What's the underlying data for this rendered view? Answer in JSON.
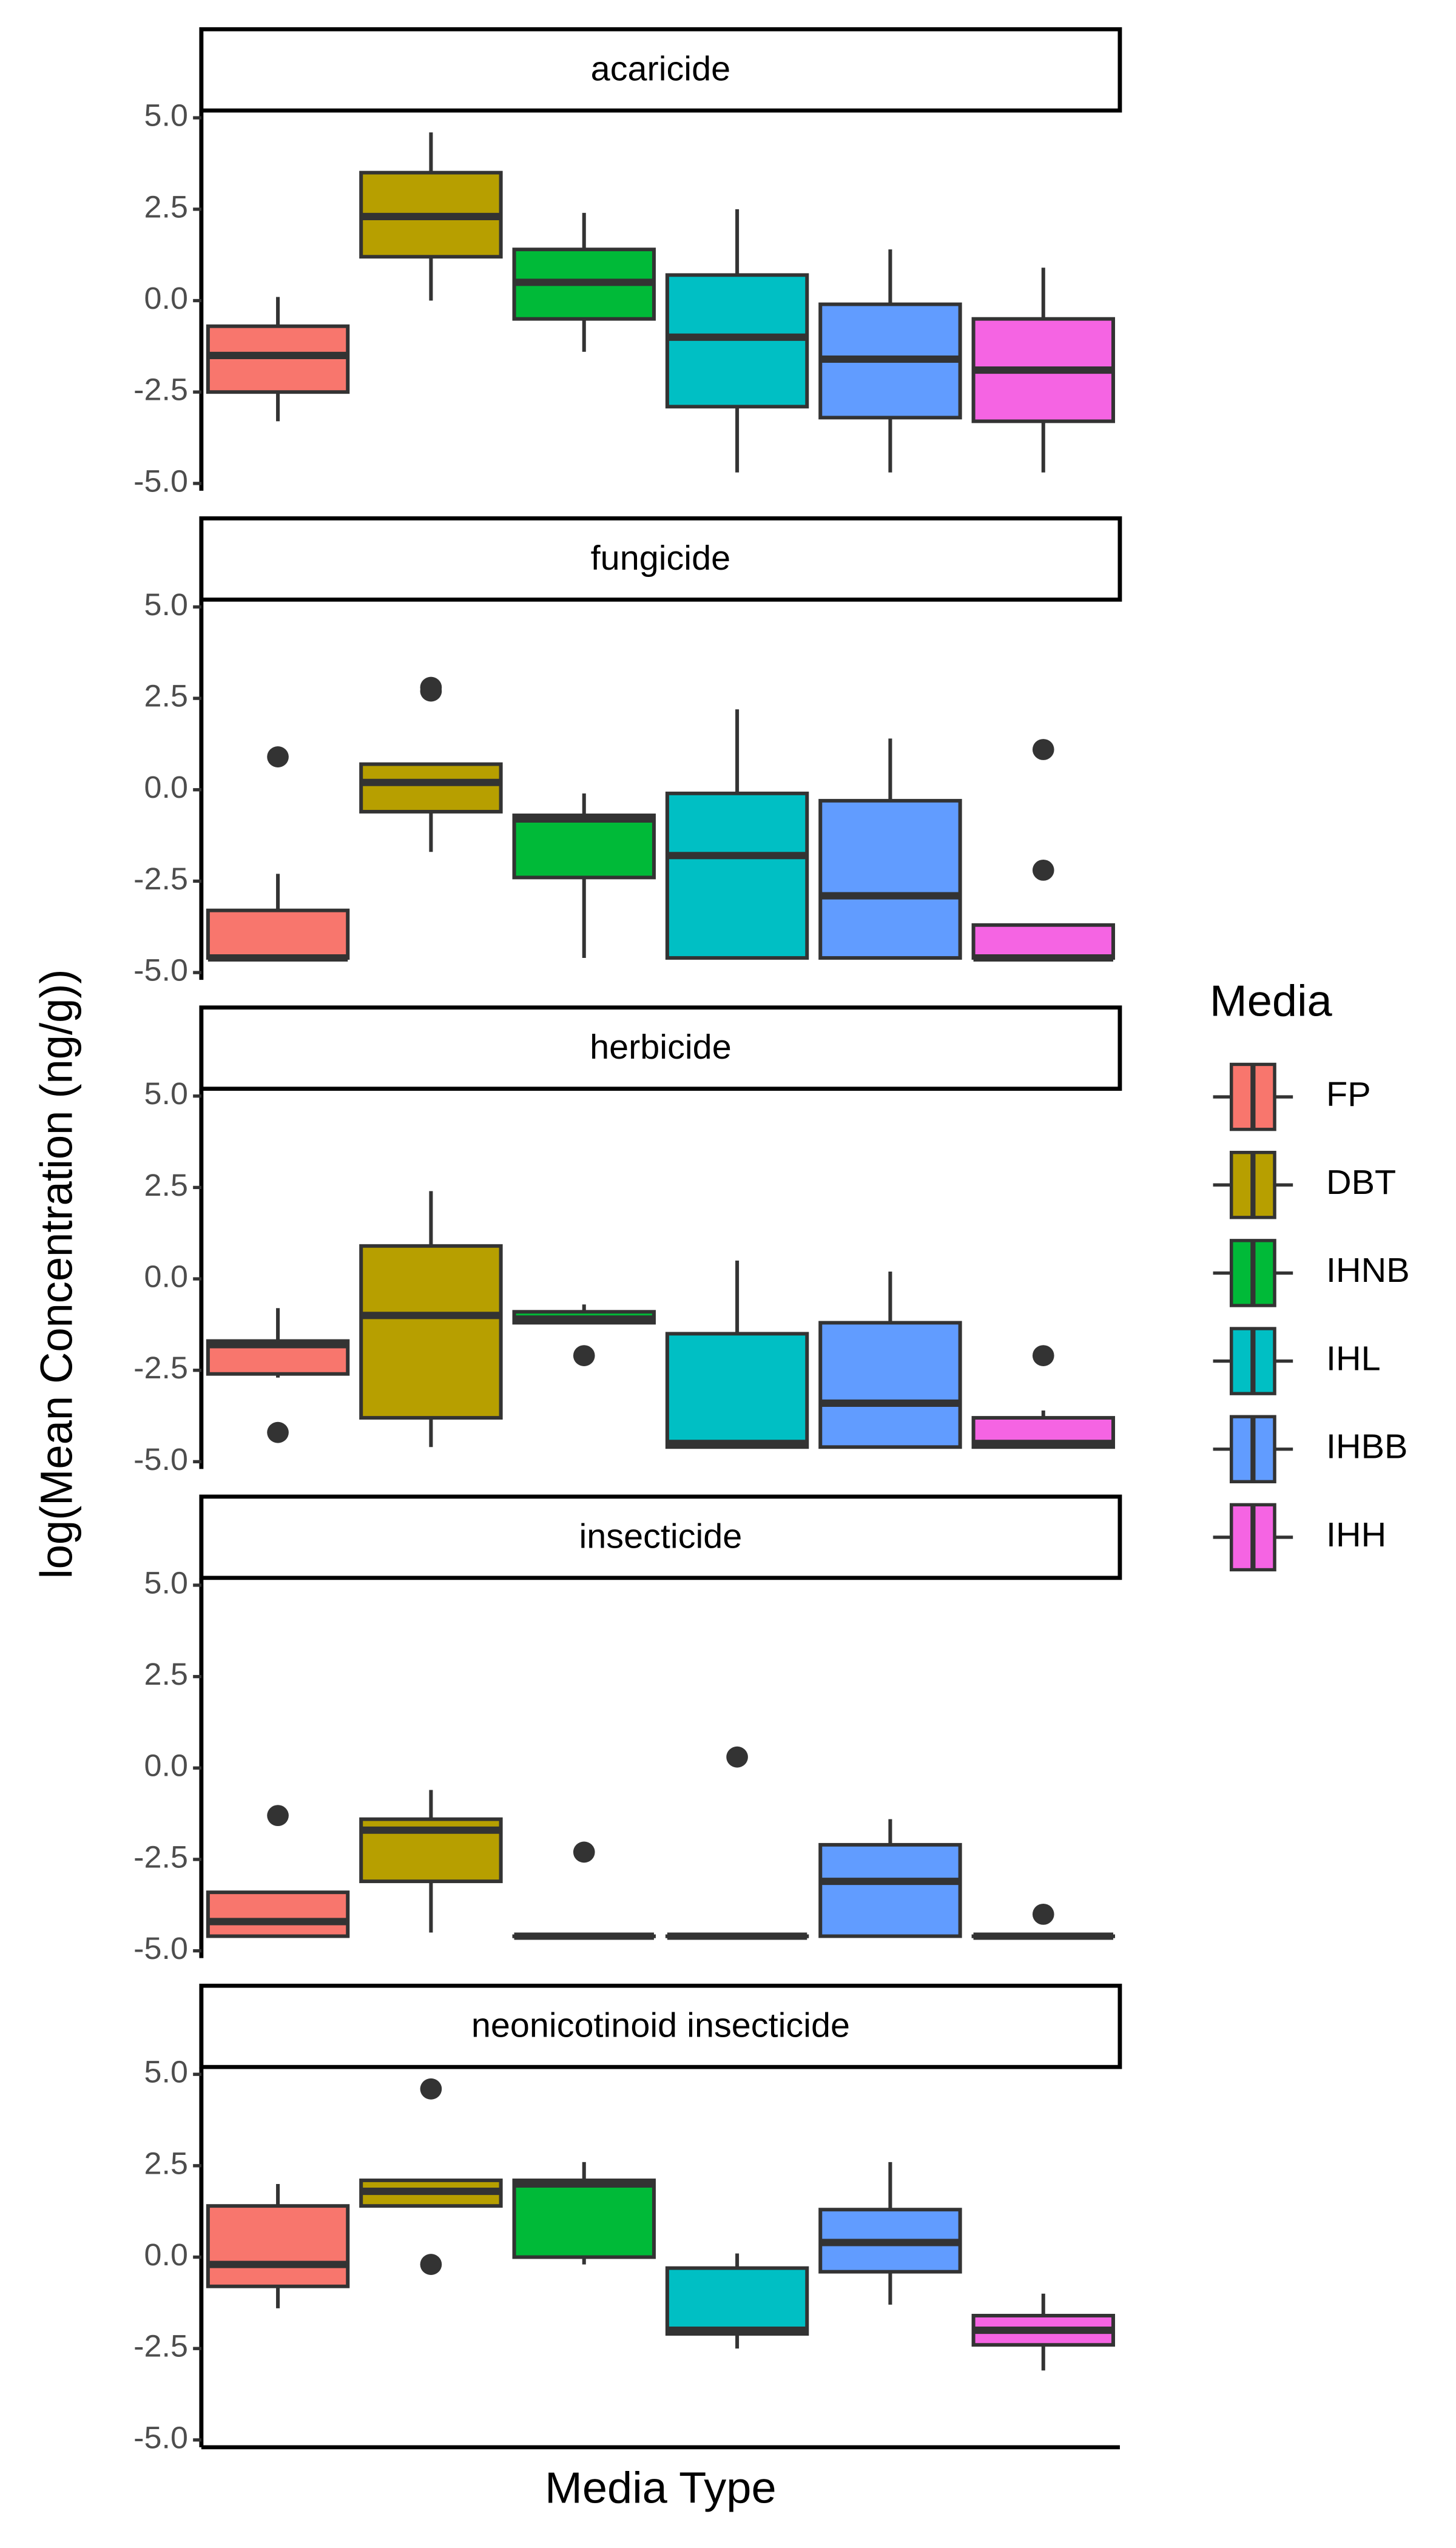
{
  "chart_data": {
    "type": "boxplot",
    "xlabel": "Media Type",
    "ylabel": "log(Mean Concentration (ng/g))",
    "legend_title": "Media",
    "legend_position": "right",
    "groups": [
      {
        "name": "FP",
        "color": "#F8766D"
      },
      {
        "name": "DBT",
        "color": "#B79F00"
      },
      {
        "name": "IHNB",
        "color": "#00BA38"
      },
      {
        "name": "IHL",
        "color": "#00BFC4"
      },
      {
        "name": "IHBB",
        "color": "#619CFF"
      },
      {
        "name": "IHH",
        "color": "#F564E3"
      }
    ],
    "ylim": [
      -5.2,
      5.2
    ],
    "yticks": [
      {
        "value": 5,
        "label": "5.0"
      },
      {
        "value": 2.5,
        "label": "2.5"
      },
      {
        "value": 0,
        "label": "0.0"
      },
      {
        "value": -2.5,
        "label": "-2.5"
      },
      {
        "value": -5,
        "label": "-5.0"
      }
    ],
    "panels": [
      {
        "title": "acaricide",
        "boxes": [
          {
            "low": -3.3,
            "q1": -2.5,
            "median": -1.5,
            "q3": -0.7,
            "high": 0.1,
            "outliers": []
          },
          {
            "low": 0.0,
            "q1": 1.2,
            "median": 2.3,
            "q3": 3.5,
            "high": 4.6,
            "outliers": []
          },
          {
            "low": -1.4,
            "q1": -0.5,
            "median": 0.5,
            "q3": 1.4,
            "high": 2.4,
            "outliers": []
          },
          {
            "low": -4.7,
            "q1": -2.9,
            "median": -1.0,
            "q3": 0.7,
            "high": 2.5,
            "outliers": []
          },
          {
            "low": -4.7,
            "q1": -3.2,
            "median": -1.6,
            "q3": -0.1,
            "high": 1.4,
            "outliers": []
          },
          {
            "low": -4.7,
            "q1": -3.3,
            "median": -1.9,
            "q3": -0.5,
            "high": 0.9,
            "outliers": []
          }
        ]
      },
      {
        "title": "fungicide",
        "boxes": [
          {
            "low": -4.6,
            "q1": -4.6,
            "median": -4.6,
            "q3": -3.3,
            "high": -2.3,
            "outliers": [
              0.9
            ]
          },
          {
            "low": -1.7,
            "q1": -0.6,
            "median": 0.2,
            "q3": 0.7,
            "high": 0.7,
            "outliers": [
              2.7,
              2.8
            ]
          },
          {
            "low": -4.6,
            "q1": -2.4,
            "median": -0.8,
            "q3": -0.7,
            "high": -0.1,
            "outliers": []
          },
          {
            "low": -4.6,
            "q1": -4.6,
            "median": -1.8,
            "q3": -0.1,
            "high": 2.2,
            "outliers": []
          },
          {
            "low": -4.6,
            "q1": -4.6,
            "median": -2.9,
            "q3": -0.3,
            "high": 1.4,
            "outliers": []
          },
          {
            "low": -4.6,
            "q1": -4.6,
            "median": -4.6,
            "q3": -3.7,
            "high": -3.7,
            "outliers": [
              1.1,
              -2.2
            ]
          }
        ]
      },
      {
        "title": "herbicide",
        "boxes": [
          {
            "low": -2.7,
            "q1": -2.6,
            "median": -1.8,
            "q3": -1.7,
            "high": -0.8,
            "outliers": [
              -4.2
            ]
          },
          {
            "low": -4.6,
            "q1": -3.8,
            "median": -1.0,
            "q3": 0.9,
            "high": 2.4,
            "outliers": []
          },
          {
            "low": -1.2,
            "q1": -1.2,
            "median": -1.1,
            "q3": -0.9,
            "high": -0.7,
            "outliers": [
              -2.1
            ]
          },
          {
            "low": -4.6,
            "q1": -4.6,
            "median": -4.5,
            "q3": -1.5,
            "high": 0.5,
            "outliers": []
          },
          {
            "low": -4.6,
            "q1": -4.6,
            "median": -3.4,
            "q3": -1.2,
            "high": 0.2,
            "outliers": []
          },
          {
            "low": -4.6,
            "q1": -4.6,
            "median": -4.5,
            "q3": -3.8,
            "high": -3.6,
            "outliers": [
              -2.1
            ]
          }
        ]
      },
      {
        "title": "insecticide",
        "boxes": [
          {
            "low": -4.6,
            "q1": -4.6,
            "median": -4.2,
            "q3": -3.4,
            "high": -3.4,
            "outliers": [
              -1.3
            ]
          },
          {
            "low": -4.5,
            "q1": -3.1,
            "median": -1.7,
            "q3": -1.4,
            "high": -0.6,
            "outliers": []
          },
          {
            "low": -4.6,
            "q1": -4.6,
            "median": -4.6,
            "q3": -4.6,
            "high": -4.6,
            "outliers": [
              -2.3
            ]
          },
          {
            "low": -4.6,
            "q1": -4.6,
            "median": -4.6,
            "q3": -4.6,
            "high": -4.6,
            "outliers": [
              0.3
            ]
          },
          {
            "low": -4.6,
            "q1": -4.6,
            "median": -3.1,
            "q3": -2.1,
            "high": -1.4,
            "outliers": []
          },
          {
            "low": -4.6,
            "q1": -4.6,
            "median": -4.6,
            "q3": -4.6,
            "high": -4.6,
            "outliers": [
              -4.0
            ]
          }
        ]
      },
      {
        "title": "neonicotinoid insecticide",
        "boxes": [
          {
            "low": -1.4,
            "q1": -0.8,
            "median": -0.2,
            "q3": 1.4,
            "high": 2.0,
            "outliers": []
          },
          {
            "low": 1.4,
            "q1": 1.4,
            "median": 1.8,
            "q3": 2.1,
            "high": 2.1,
            "outliers": [
              4.6,
              -0.2
            ]
          },
          {
            "low": -0.2,
            "q1": 0.0,
            "median": 2.0,
            "q3": 2.1,
            "high": 2.6,
            "outliers": []
          },
          {
            "low": -2.5,
            "q1": -2.1,
            "median": -2.0,
            "q3": -0.3,
            "high": 0.1,
            "outliers": []
          },
          {
            "low": -1.3,
            "q1": -0.4,
            "median": 0.4,
            "q3": 1.3,
            "high": 2.6,
            "outliers": []
          },
          {
            "low": -3.1,
            "q1": -2.4,
            "median": -2.0,
            "q3": -1.6,
            "high": -1.0,
            "outliers": []
          }
        ]
      }
    ]
  }
}
